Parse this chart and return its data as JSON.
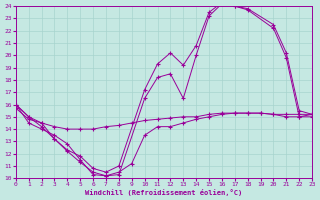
{
  "xlabel": "Windchill (Refroidissement éolien,°C)",
  "xlim": [
    0,
    23
  ],
  "ylim": [
    10,
    24
  ],
  "xticks": [
    0,
    1,
    2,
    3,
    4,
    5,
    6,
    7,
    8,
    9,
    10,
    11,
    12,
    13,
    14,
    15,
    16,
    17,
    18,
    19,
    20,
    21,
    22,
    23
  ],
  "yticks": [
    10,
    11,
    12,
    13,
    14,
    15,
    16,
    17,
    18,
    19,
    20,
    21,
    22,
    23,
    24
  ],
  "bg_color": "#c5e8e2",
  "line_color": "#990099",
  "grid_color": "#a8d4ce",
  "lines": [
    {
      "x": [
        0,
        1,
        2,
        3,
        4,
        5,
        6,
        7,
        8,
        10,
        11,
        12,
        13,
        14,
        15,
        16,
        17,
        18,
        20,
        21,
        22,
        23
      ],
      "y": [
        16,
        15,
        14.2,
        13.2,
        12.2,
        11.3,
        10.5,
        10.2,
        10.3,
        16.5,
        18.2,
        18.5,
        16.5,
        20.0,
        23.2,
        24.2,
        24.0,
        23.7,
        22.2,
        19.8,
        15.0,
        15.2
      ]
    },
    {
      "x": [
        0,
        1,
        2,
        3,
        4,
        5,
        6,
        7,
        8,
        10,
        11,
        12,
        13,
        14,
        15,
        16,
        17,
        18,
        20,
        21,
        22,
        23
      ],
      "y": [
        16,
        15.0,
        14.5,
        13.2,
        12.3,
        11.8,
        10.8,
        10.5,
        11.0,
        17.2,
        19.3,
        20.2,
        19.2,
        20.8,
        23.5,
        24.3,
        24.0,
        23.8,
        22.5,
        20.2,
        15.5,
        15.2
      ]
    },
    {
      "x": [
        0,
        1,
        2,
        3,
        4,
        5,
        6,
        7,
        8,
        9,
        10,
        11,
        12,
        13,
        14,
        15,
        16,
        17,
        18,
        19,
        20,
        21,
        22,
        23
      ],
      "y": [
        16,
        14.5,
        14.0,
        13.5,
        12.8,
        11.5,
        10.3,
        10.2,
        10.5,
        11.2,
        13.5,
        14.2,
        14.2,
        14.5,
        14.8,
        15.0,
        15.2,
        15.3,
        15.3,
        15.3,
        15.2,
        15.0,
        15.0,
        15.0
      ]
    },
    {
      "x": [
        0,
        1,
        2,
        3,
        4,
        5,
        6,
        7,
        8,
        9,
        10,
        11,
        12,
        13,
        14,
        15,
        16,
        17,
        18,
        19,
        20,
        21,
        22,
        23
      ],
      "y": [
        15.7,
        14.8,
        14.5,
        14.2,
        14.0,
        14.0,
        14.0,
        14.2,
        14.3,
        14.5,
        14.7,
        14.8,
        14.9,
        15.0,
        15.0,
        15.2,
        15.3,
        15.3,
        15.3,
        15.3,
        15.2,
        15.2,
        15.2,
        15.2
      ]
    }
  ]
}
